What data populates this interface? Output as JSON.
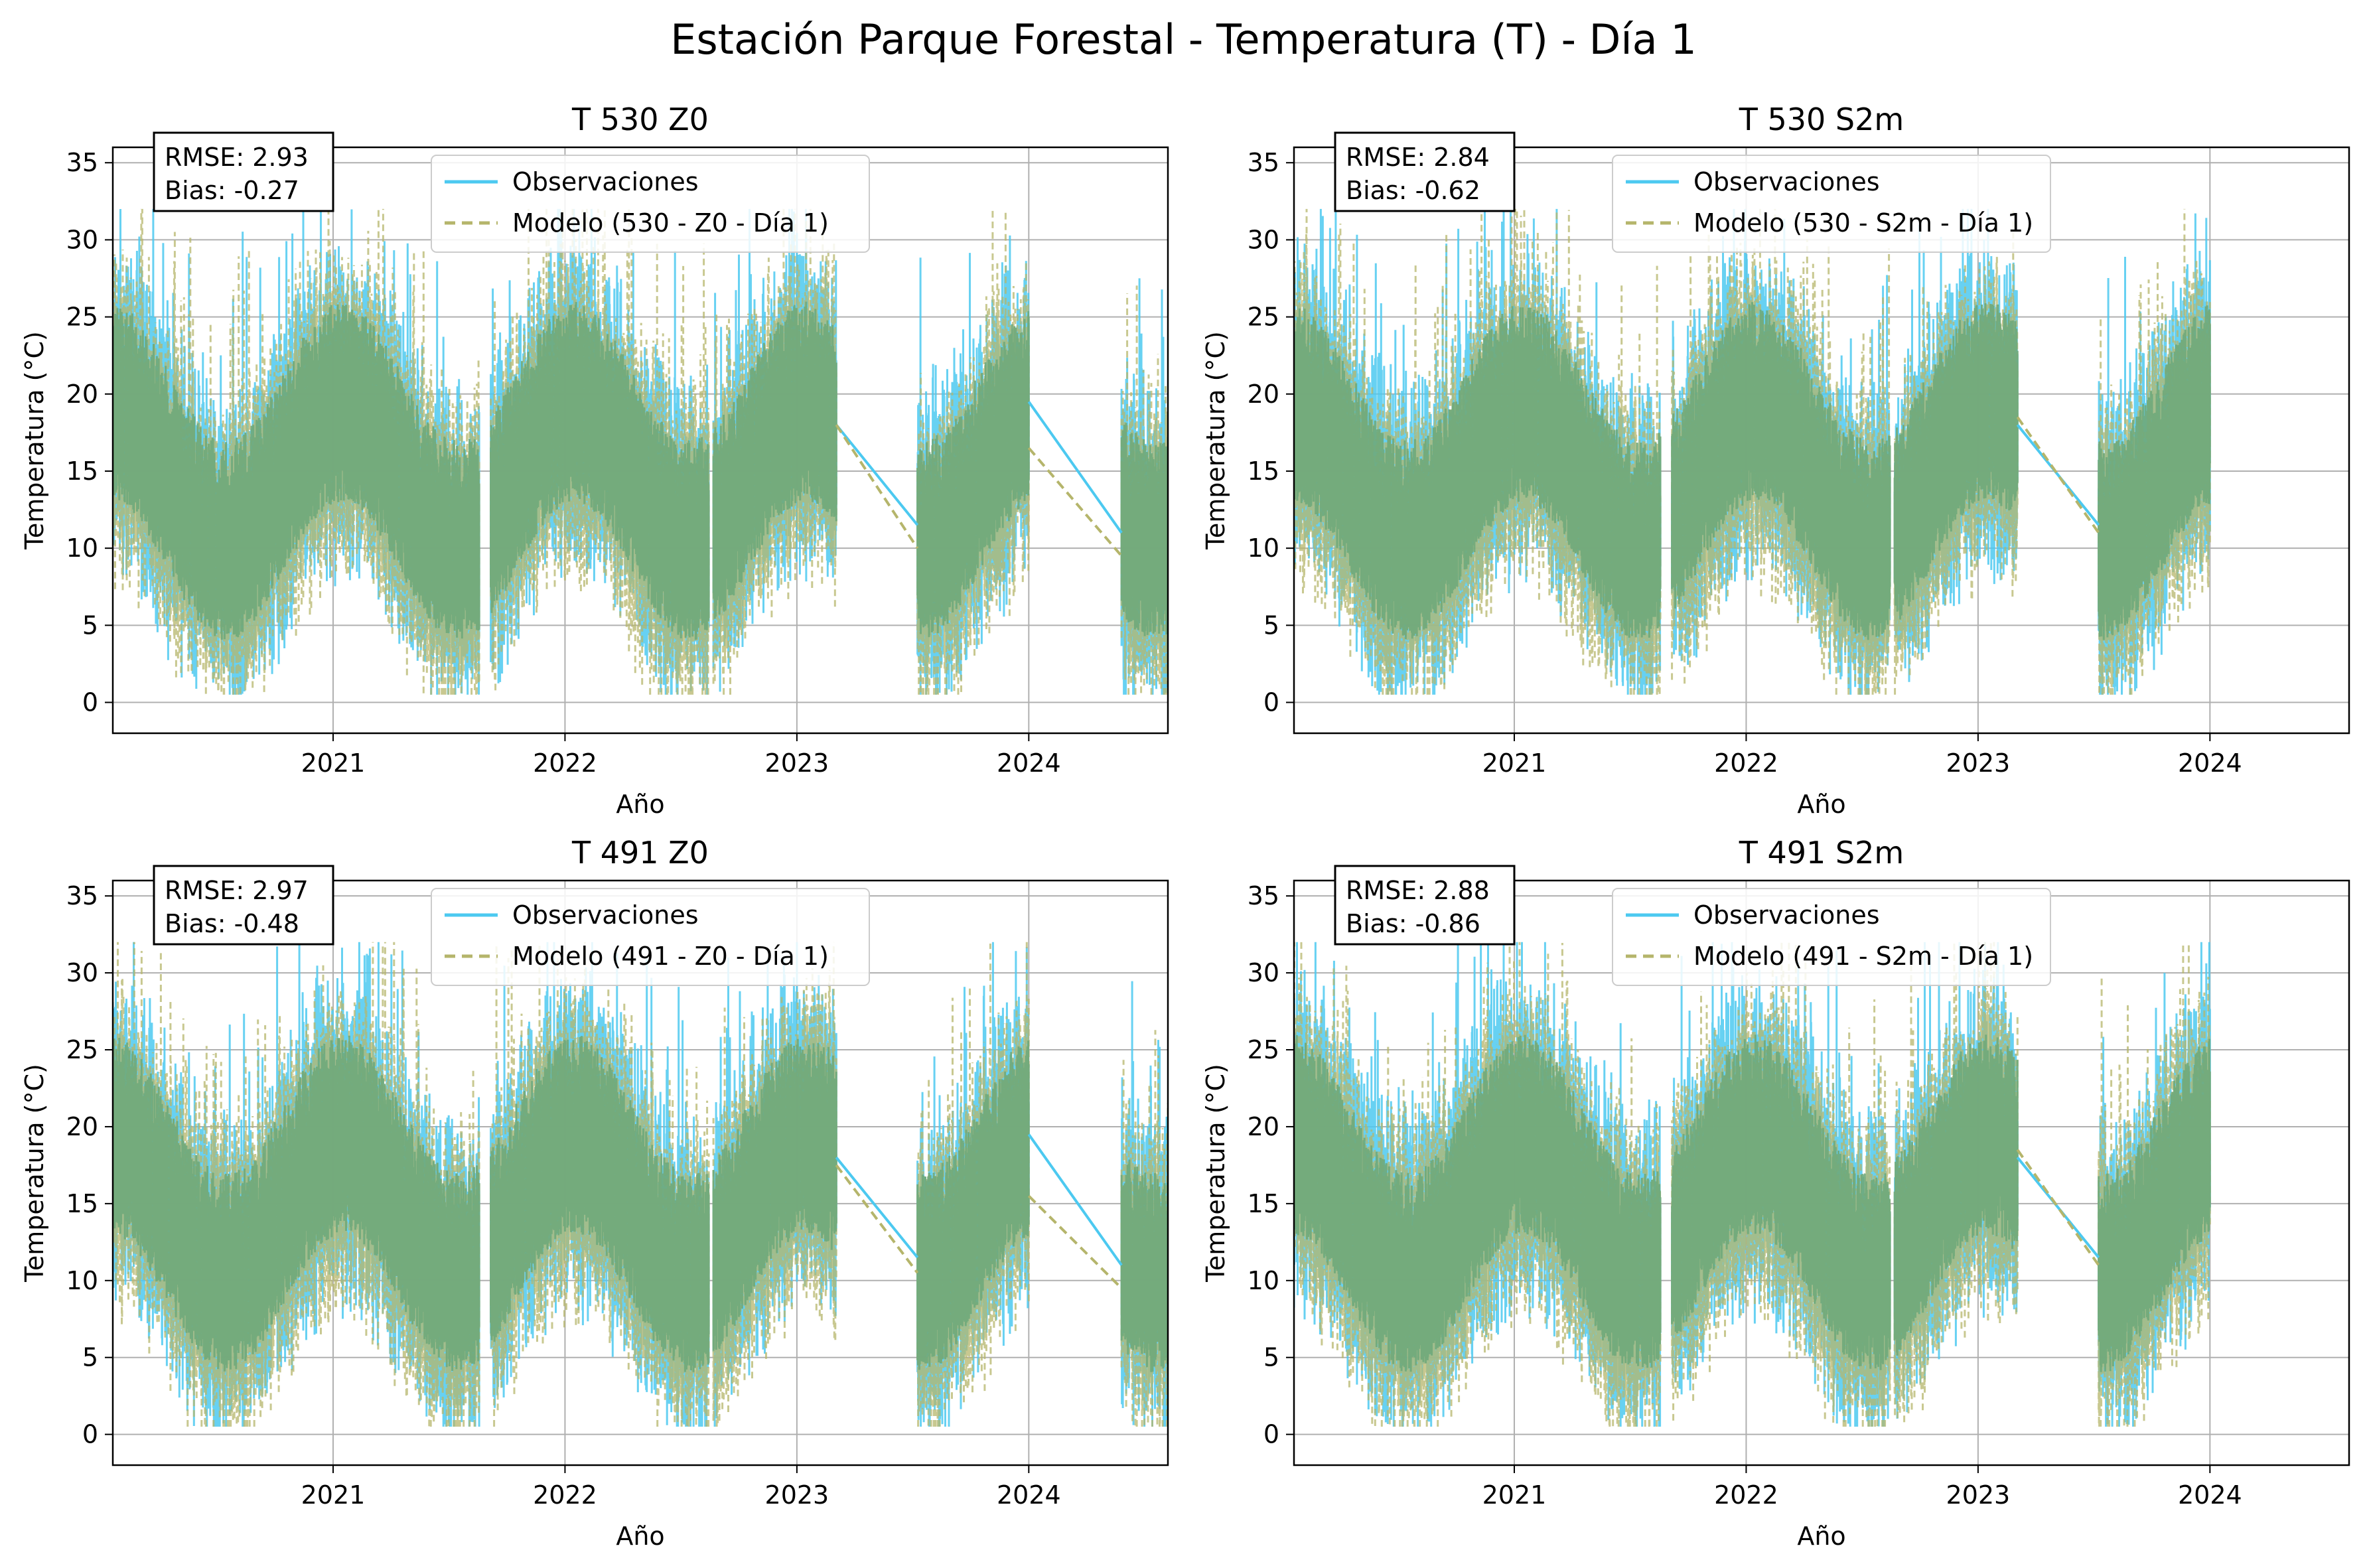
{
  "figure": {
    "title": "Estación Parque Forestal - Temperatura (T) - Día 1",
    "colors": {
      "observed": "#4cc9f0",
      "model": "#b5b56b",
      "overlap": "#6fa97a",
      "grid": "#b0b0b0"
    }
  },
  "chart_data": [
    {
      "type": "line",
      "title": "T 530 Z0",
      "xlabel": "Año",
      "ylabel": "Temperatura (°C)",
      "xlim": [
        2020.05,
        2024.6
      ],
      "ylim": [
        -2,
        36
      ],
      "xticks": [
        "2021",
        "2022",
        "2023",
        "2024"
      ],
      "yticks": [
        "0",
        "5",
        "10",
        "15",
        "20",
        "25",
        "30",
        "35"
      ],
      "grid": true,
      "legend": "top-center",
      "stats": {
        "rmse": "RMSE: 2.93",
        "bias": "Bias: -0.27"
      },
      "series": [
        {
          "name": "Observaciones",
          "style": "solid",
          "segments": [
            [
              2020.05,
              2023.17
            ],
            [
              2023.17,
              2023.52
            ],
            [
              2023.52,
              2024.0
            ],
            [
              2024.0,
              2024.4
            ],
            [
              2024.4,
              2024.6
            ]
          ],
          "gaps": [
            [
              2023.17,
              18.0,
              2023.52,
              11.5
            ],
            [
              2024.0,
              19.5,
              2024.4,
              11.0
            ]
          ],
          "ranges": {
            "min": 0,
            "max": 32
          }
        },
        {
          "name": "Modelo (530 - Z0 - Día 1)",
          "style": "dashed",
          "gaps": [
            [
              2023.17,
              18.0,
              2023.52,
              10.0
            ],
            [
              2024.0,
              16.5,
              2024.4,
              9.5
            ]
          ]
        }
      ]
    },
    {
      "type": "line",
      "title": "T 530 S2m",
      "xlabel": "Año",
      "ylabel": "Temperatura (°C)",
      "xlim": [
        2020.05,
        2024.6
      ],
      "ylim": [
        -2,
        36
      ],
      "xticks": [
        "2021",
        "2022",
        "2023",
        "2024"
      ],
      "yticks": [
        "0",
        "5",
        "10",
        "15",
        "20",
        "25",
        "30",
        "35"
      ],
      "grid": true,
      "legend": "top-center",
      "stats": {
        "rmse": "RMSE: 2.84",
        "bias": "Bias: -0.62"
      },
      "series": [
        {
          "name": "Observaciones",
          "style": "solid",
          "gaps": [
            [
              2023.17,
              18.0,
              2023.52,
              11.5
            ]
          ]
        },
        {
          "name": "Modelo (530 - S2m - Día 1)",
          "style": "dashed",
          "gaps": [
            [
              2023.17,
              18.5,
              2023.52,
              11.0
            ]
          ]
        }
      ]
    },
    {
      "type": "line",
      "title": "T 491 Z0",
      "xlabel": "Año",
      "ylabel": "Temperatura (°C)",
      "xlim": [
        2020.05,
        2024.6
      ],
      "ylim": [
        -2,
        36
      ],
      "xticks": [
        "2021",
        "2022",
        "2023",
        "2024"
      ],
      "yticks": [
        "0",
        "5",
        "10",
        "15",
        "20",
        "25",
        "30",
        "35"
      ],
      "grid": true,
      "legend": "top-center",
      "stats": {
        "rmse": "RMSE: 2.97",
        "bias": "Bias: -0.48"
      },
      "series": [
        {
          "name": "Observaciones",
          "style": "solid",
          "gaps": [
            [
              2023.17,
              18.0,
              2023.52,
              11.5
            ],
            [
              2024.0,
              19.5,
              2024.4,
              11.0
            ]
          ]
        },
        {
          "name": "Modelo (491 - Z0 - Día 1)",
          "style": "dashed",
          "gaps": [
            [
              2023.17,
              17.5,
              2023.52,
              10.5
            ],
            [
              2024.0,
              15.5,
              2024.4,
              9.5
            ]
          ]
        }
      ]
    },
    {
      "type": "line",
      "title": "T 491 S2m",
      "xlabel": "Año",
      "ylabel": "Temperatura (°C)",
      "xlim": [
        2020.05,
        2024.6
      ],
      "ylim": [
        -2,
        36
      ],
      "xticks": [
        "2021",
        "2022",
        "2023",
        "2024"
      ],
      "yticks": [
        "0",
        "5",
        "10",
        "15",
        "20",
        "25",
        "30",
        "35"
      ],
      "grid": true,
      "legend": "top-center",
      "stats": {
        "rmse": "RMSE: 2.88",
        "bias": "Bias: -0.86"
      },
      "series": [
        {
          "name": "Observaciones",
          "style": "solid",
          "gaps": [
            [
              2023.17,
              18.0,
              2023.52,
              11.5
            ]
          ]
        },
        {
          "name": "Modelo (491 - S2m - Día 1)",
          "style": "dashed",
          "gaps": [
            [
              2023.17,
              18.5,
              2023.52,
              11.0
            ]
          ]
        }
      ]
    }
  ]
}
